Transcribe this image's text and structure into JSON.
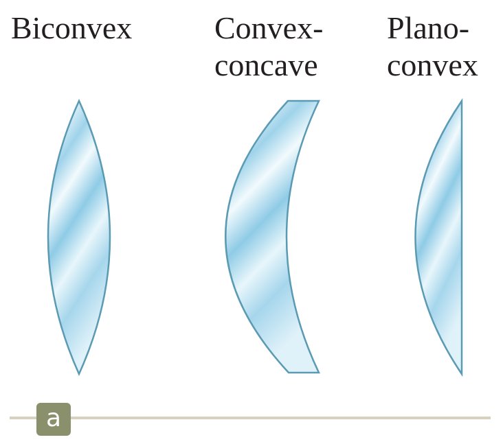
{
  "lenses": [
    {
      "id": "biconvex",
      "label_lines": [
        "Biconvex"
      ]
    },
    {
      "id": "convex-concave",
      "label_lines": [
        "Convex-",
        "concave"
      ]
    },
    {
      "id": "plano-convex",
      "label_lines": [
        "Plano-",
        "convex"
      ]
    }
  ],
  "part_label": "a",
  "colors": {
    "lens_outline": "#5b9ab3",
    "lens_fill_light": "#eef8fc",
    "lens_fill_dark": "#8fcbe6",
    "rule": "#d6d2be",
    "badge": "#8a8f6c",
    "text": "#231f20"
  }
}
